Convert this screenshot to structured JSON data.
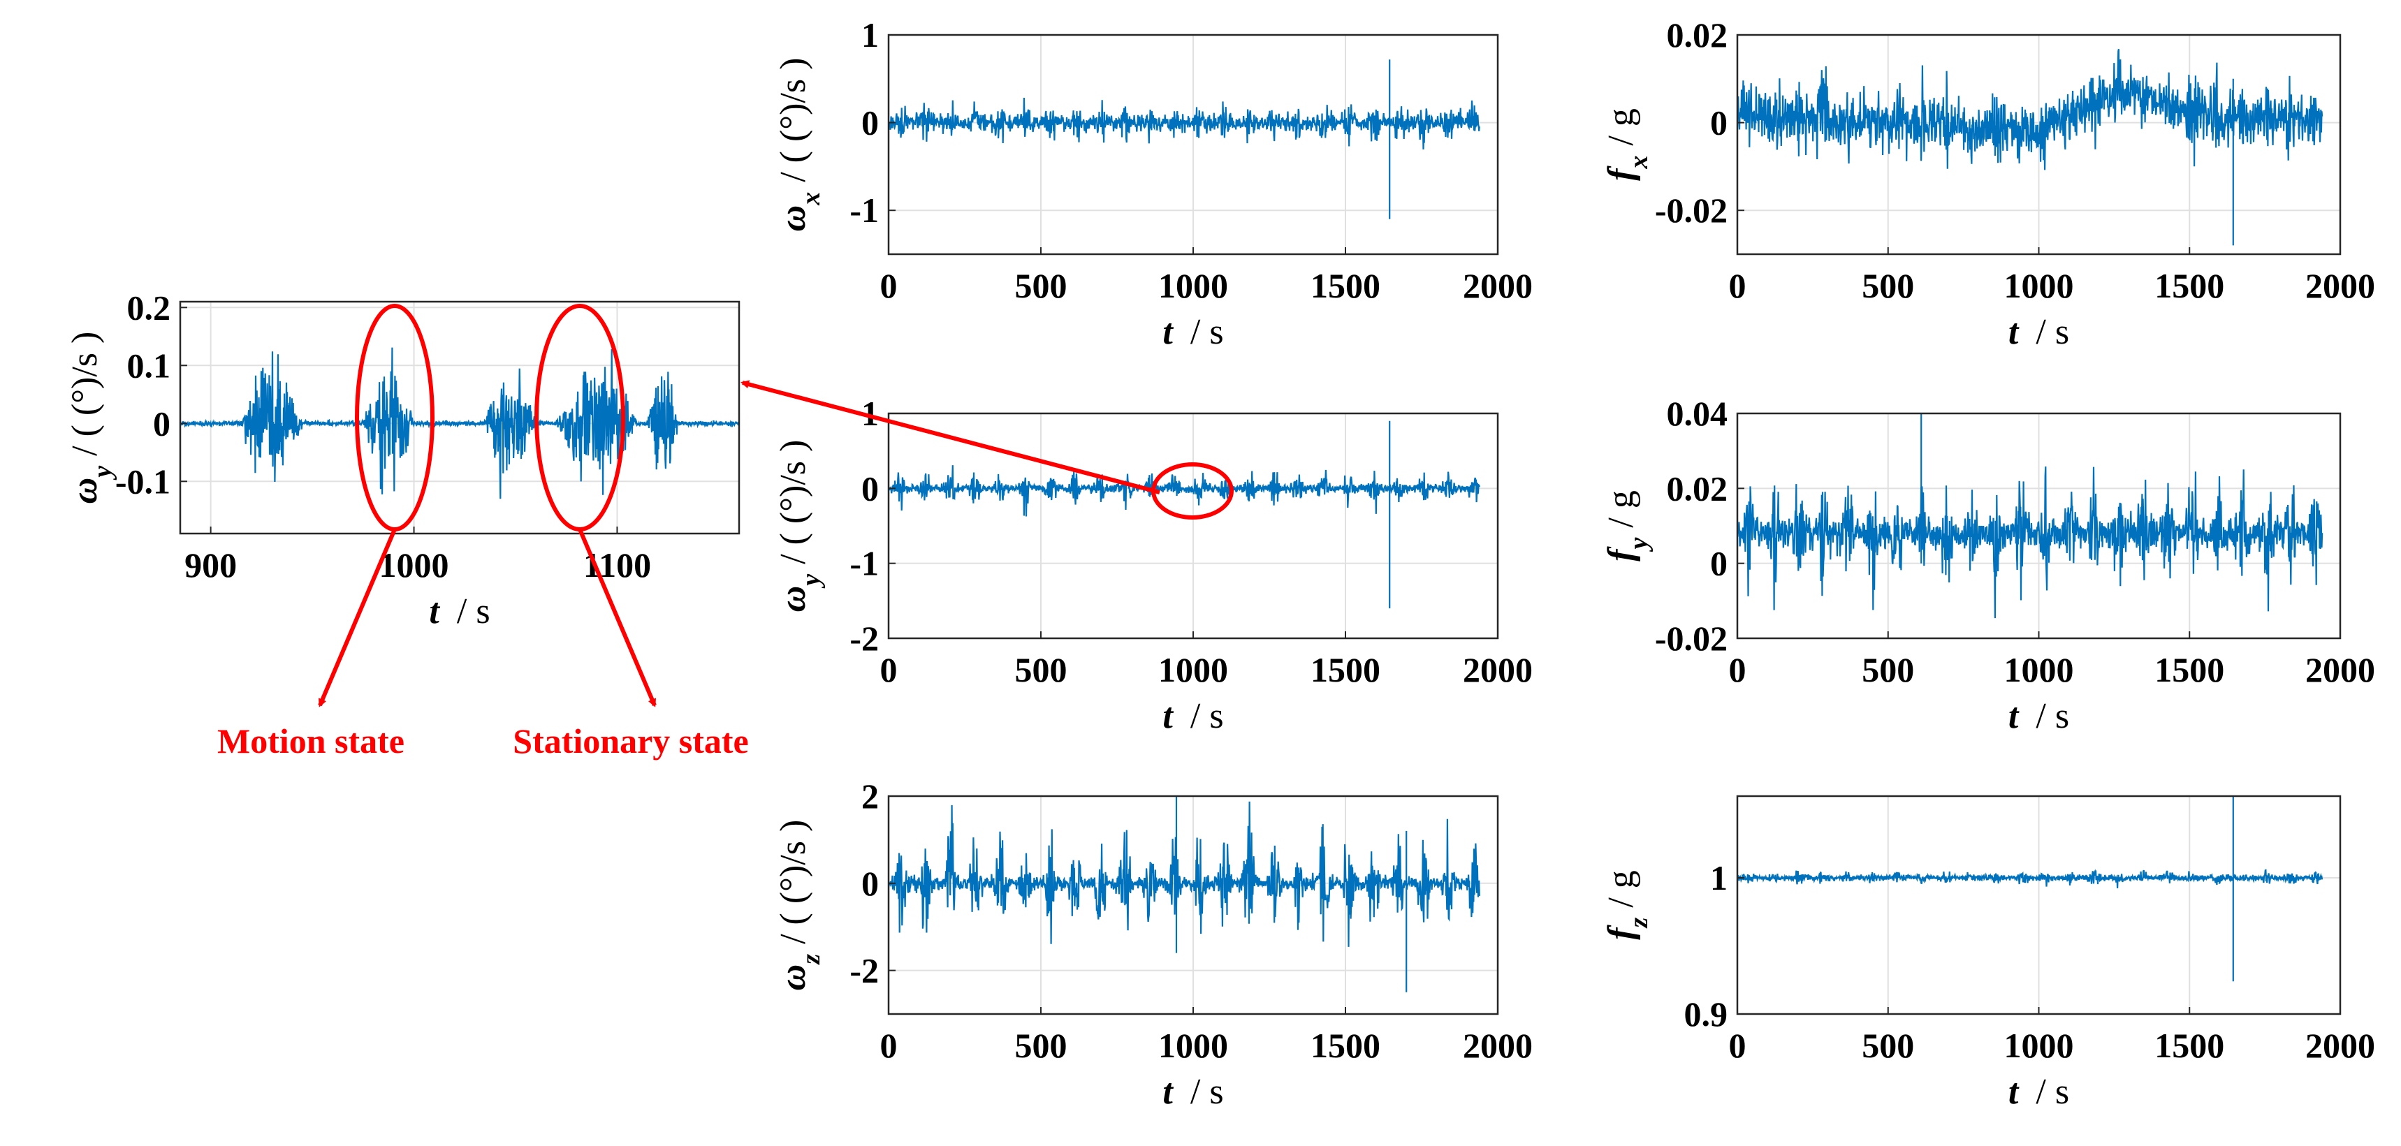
{
  "figure": {
    "description_free": true,
    "colors": {
      "series": "#0072BD",
      "annotation": "#FF0000",
      "grid": "#E0E0E0",
      "axes": "#262626"
    }
  },
  "annotations": {
    "motion_label": "Motion state",
    "stationary_label": "Stationary state"
  },
  "chart_data": [
    {
      "id": "omega_x",
      "type": "line",
      "ylabel_symbol": "ω",
      "ylabel_sub": "x",
      "ylabel_unit": "/ ( (°)/s )",
      "xlabel_symbol": "t",
      "xlabel_unit": "/ s",
      "xlim": [
        0,
        2000
      ],
      "ylim": [
        -1.5,
        1
      ],
      "xticks": [
        0,
        500,
        1000,
        1500,
        2000
      ],
      "xtick_labels": [
        "0",
        "500",
        "1000",
        "1500",
        "2000"
      ],
      "yticks": [
        -1,
        0,
        1
      ],
      "ytick_labels": [
        "-1",
        "0",
        "1"
      ],
      "grid": true,
      "series": [
        {
          "name": "omega_x",
          "t_end": 1940,
          "baseline": 0,
          "noise": 0.09,
          "bursts": 0.12,
          "spikes": [
            {
              "t": 1645,
              "min": -1.1,
              "max": 0.72
            }
          ]
        }
      ]
    },
    {
      "id": "f_x",
      "type": "line",
      "ylabel_symbol": "f",
      "ylabel_sub": "x",
      "ylabel_unit": "/ g",
      "xlabel_symbol": "t",
      "xlabel_unit": "/ s",
      "xlim": [
        0,
        2000
      ],
      "ylim": [
        -0.03,
        0.02
      ],
      "xticks": [
        0,
        500,
        1000,
        1500,
        2000
      ],
      "xtick_labels": [
        "0",
        "500",
        "1000",
        "1500",
        "2000"
      ],
      "yticks": [
        -0.02,
        0,
        0.02
      ],
      "ytick_labels": [
        "-0.02",
        "0",
        "0.02"
      ],
      "grid": true,
      "series": [
        {
          "name": "f_x",
          "t_end": 1940,
          "baseline": 0.002,
          "noise": 0.005,
          "bursts": 0.004,
          "drift": [
            {
              "t": 1000,
              "v": -0.002
            },
            {
              "t": 1270,
              "v": 0.008
            },
            {
              "t": 1600,
              "v": 0.001
            }
          ],
          "spikes": [
            {
              "t": 1645,
              "min": -0.028,
              "max": 0.01
            }
          ]
        }
      ]
    },
    {
      "id": "omega_y",
      "type": "line",
      "ylabel_symbol": "ω",
      "ylabel_sub": "y",
      "ylabel_unit": "/ ( (°)/s )",
      "xlabel_symbol": "t",
      "xlabel_unit": "/ s",
      "xlim": [
        0,
        2000
      ],
      "ylim": [
        -2,
        1
      ],
      "xticks": [
        0,
        500,
        1000,
        1500,
        2000
      ],
      "xtick_labels": [
        "0",
        "500",
        "1000",
        "1500",
        "2000"
      ],
      "yticks": [
        -2,
        -1,
        0,
        1
      ],
      "ytick_labels": [
        "-2",
        "-1",
        "0",
        "1"
      ],
      "grid": true,
      "series": [
        {
          "name": "omega_y",
          "t_end": 1940,
          "baseline": 0,
          "noise": 0.05,
          "bursts": 0.2,
          "spikes": [
            {
              "t": 1645,
              "min": -1.6,
              "max": 0.9
            }
          ]
        }
      ]
    },
    {
      "id": "f_y",
      "type": "line",
      "ylabel_symbol": "f",
      "ylabel_sub": "y",
      "ylabel_unit": "/ g",
      "xlabel_symbol": "t",
      "xlabel_unit": "/ s",
      "xlim": [
        0,
        2000
      ],
      "ylim": [
        -0.02,
        0.04
      ],
      "xticks": [
        0,
        500,
        1000,
        1500,
        2000
      ],
      "xtick_labels": [
        "0",
        "500",
        "1000",
        "1500",
        "2000"
      ],
      "yticks": [
        -0.02,
        0,
        0.02,
        0.04
      ],
      "ytick_labels": [
        "-0.02",
        "0",
        "0.02",
        "0.04"
      ],
      "grid": true,
      "series": [
        {
          "name": "f_y",
          "t_end": 1940,
          "baseline": 0.008,
          "noise": 0.004,
          "bursts": 0.012,
          "spikes": [
            {
              "t": 610,
              "min": 0.0,
              "max": 0.04
            }
          ]
        }
      ]
    },
    {
      "id": "omega_z",
      "type": "line",
      "ylabel_symbol": "ω",
      "ylabel_sub": "z",
      "ylabel_unit": "/ ( (°)/s )",
      "xlabel_symbol": "t",
      "xlabel_unit": "/ s",
      "xlim": [
        0,
        2000
      ],
      "ylim": [
        -3,
        2
      ],
      "xticks": [
        0,
        500,
        1000,
        1500,
        2000
      ],
      "xtick_labels": [
        "0",
        "500",
        "1000",
        "1500",
        "2000"
      ],
      "yticks": [
        -2,
        0,
        2
      ],
      "ytick_labels": [
        "-2",
        "0",
        "2"
      ],
      "grid": true,
      "series": [
        {
          "name": "omega_z",
          "t_end": 1940,
          "baseline": 0,
          "noise": 0.15,
          "bursts": 1.1,
          "spikes": [
            {
              "t": 945,
              "min": -1.6,
              "max": 2.0
            },
            {
              "t": 1700,
              "min": -2.5,
              "max": 1.2
            }
          ]
        }
      ]
    },
    {
      "id": "f_z",
      "type": "line",
      "ylabel_symbol": "f",
      "ylabel_sub": "z",
      "ylabel_unit": "/ g",
      "xlabel_symbol": "t",
      "xlabel_unit": "/ s",
      "xlim": [
        0,
        2000
      ],
      "ylim": [
        0.9,
        1.06
      ],
      "xticks": [
        0,
        500,
        1000,
        1500,
        2000
      ],
      "xtick_labels": [
        "0",
        "500",
        "1000",
        "1500",
        "2000"
      ],
      "yticks": [
        0.9,
        1
      ],
      "ytick_labels": [
        "0.9",
        "1"
      ],
      "grid": true,
      "series": [
        {
          "name": "f_z",
          "t_end": 1940,
          "baseline": 1.0,
          "noise": 0.002,
          "bursts": 0.003,
          "spikes": [
            {
              "t": 1645,
              "min": 0.924,
              "max": 1.06
            }
          ]
        }
      ]
    },
    {
      "id": "omega_y_zoom",
      "type": "line",
      "ylabel_symbol": "ω",
      "ylabel_sub": "y",
      "ylabel_unit": "/ ( (°)/s )",
      "xlabel_symbol": "t",
      "xlabel_unit": "/ s",
      "xlim": [
        885,
        1160
      ],
      "ylim": [
        -0.19,
        0.21
      ],
      "xticks": [
        900,
        1000,
        1100
      ],
      "xtick_labels": [
        "900",
        "1000",
        "1100"
      ],
      "yticks": [
        -0.1,
        0,
        0.1,
        0.2
      ],
      "ytick_labels": [
        "-0.1",
        "0",
        "0.1",
        "0.2"
      ],
      "grid": true,
      "series": [
        {
          "name": "omega_y_zoom",
          "t_start": 885,
          "t_end": 1160,
          "baseline": 0,
          "noise": 0.004,
          "burst_windows": [
            [
              915,
              945
            ],
            [
              975,
              1000
            ],
            [
              1035,
              1060
            ],
            [
              1070,
              1110
            ],
            [
              1115,
              1130
            ]
          ],
          "burst_amp": 0.17
        }
      ]
    }
  ]
}
